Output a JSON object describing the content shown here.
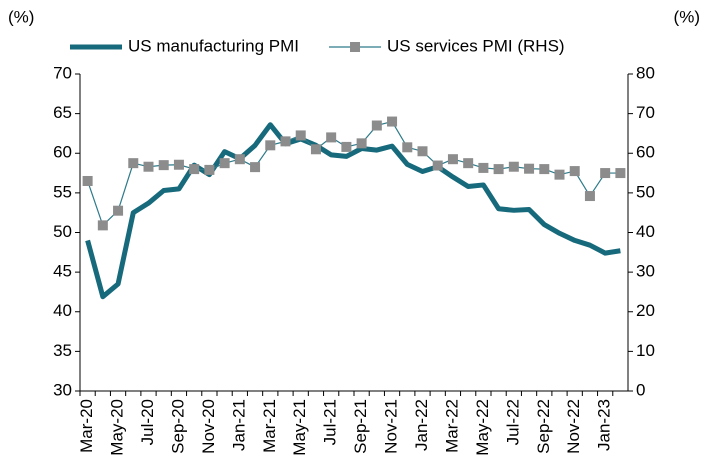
{
  "chart_data": {
    "type": "line",
    "y_label": "(%)",
    "y2_label": "(%)",
    "categories": [
      "Mar-20",
      null,
      "May-20",
      null,
      "Jul-20",
      null,
      "Sep-20",
      null,
      "Nov-20",
      null,
      "Jan-21",
      null,
      "Mar-21",
      null,
      "May-21",
      null,
      "Jul-21",
      null,
      "Sep-21",
      null,
      "Nov-21",
      null,
      "Jan-22",
      null,
      "Mar-22",
      null,
      "May-22",
      null,
      "Jul-22",
      null,
      "Sep-22",
      null,
      "Nov-22",
      null,
      "Jan-23",
      null
    ],
    "series": [
      {
        "name": "US manufacturing PMI",
        "color": "#176a7b",
        "axis": "y",
        "values": [
          49.0,
          41.9,
          43.5,
          52.5,
          53.7,
          55.3,
          55.5,
          58.5,
          57.3,
          60.2,
          59.3,
          61.0,
          63.6,
          61.2,
          61.8,
          61.0,
          59.8,
          59.6,
          60.6,
          60.4,
          60.9,
          58.6,
          57.7,
          58.3,
          57.0,
          55.8,
          56.0,
          53.0,
          52.8,
          52.9,
          51.0,
          49.9,
          49.0,
          48.4,
          47.4,
          47.7
        ]
      },
      {
        "name": "US services PMI (RHS)",
        "color": "#2d7a8a",
        "marker_color": "#8c8c8c",
        "axis": "y2",
        "values": [
          53.0,
          41.8,
          45.5,
          57.5,
          56.6,
          57.0,
          57.1,
          56.0,
          55.8,
          57.5,
          58.5,
          56.5,
          62.0,
          63.0,
          64.5,
          61.0,
          64.0,
          61.6,
          62.5,
          67.0,
          68.0,
          61.5,
          60.5,
          56.9,
          58.5,
          57.5,
          56.3,
          56.0,
          56.6,
          56.1,
          56.0,
          54.6,
          55.5,
          49.2,
          55.0,
          55.0
        ]
      }
    ],
    "ylim": [
      30,
      70
    ],
    "yticks": [
      30,
      35,
      40,
      45,
      50,
      55,
      60,
      65,
      70
    ],
    "y2lim": [
      0,
      80
    ],
    "y2ticks": [
      0,
      10,
      20,
      30,
      40,
      50,
      60,
      70,
      80
    ],
    "grid": false,
    "legend": "top"
  }
}
